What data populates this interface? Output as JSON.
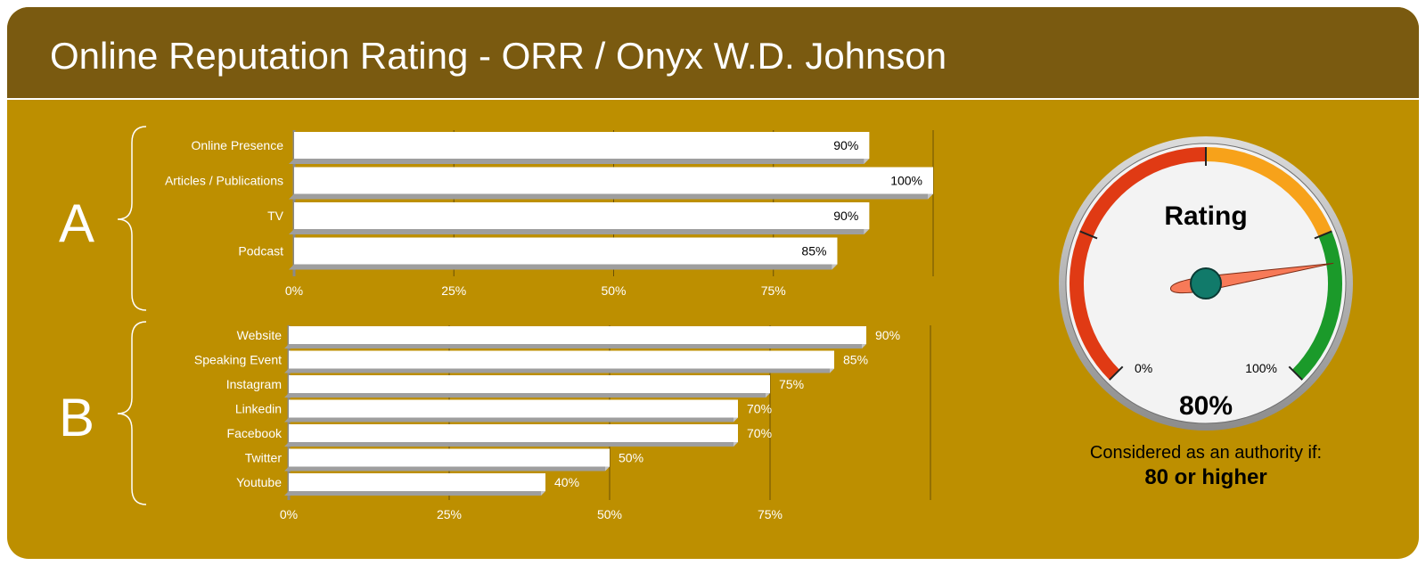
{
  "header": {
    "title": "Online Reputation Rating - ORR / Onyx W.D. Johnson"
  },
  "colors": {
    "background": "#bd8f00",
    "header": "#7a5a10",
    "bar_fill": "#ffffff",
    "gauge_red": "#e03a14",
    "gauge_orange": "#f7a21a",
    "gauge_green": "#1b9a2a",
    "gauge_hub": "#117a6a",
    "needle": "#f77a58"
  },
  "chart_data": [
    {
      "type": "bar",
      "group_label": "A",
      "orientation": "horizontal",
      "categories": [
        "Online Presence",
        "Articles / Publications",
        "TV",
        "Podcast"
      ],
      "values": [
        90,
        100,
        90,
        85
      ],
      "data_labels": [
        "90%",
        "100%",
        "90%",
        "85%"
      ],
      "xlim": [
        0,
        100
      ],
      "ticks": [
        0,
        25,
        50,
        75
      ],
      "tick_labels": [
        "0%",
        "25%",
        "50%",
        "75%"
      ],
      "grid": true
    },
    {
      "type": "bar",
      "group_label": "B",
      "orientation": "horizontal",
      "categories": [
        "Website",
        "Speaking Event",
        "Instagram",
        "Linkedin",
        "Facebook",
        "Twitter",
        "Youtube"
      ],
      "values": [
        90,
        85,
        75,
        70,
        70,
        50,
        40
      ],
      "data_labels": [
        "90%",
        "85%",
        "75%",
        "70%",
        "70%",
        "50%",
        "40%"
      ],
      "xlim": [
        0,
        100
      ],
      "ticks": [
        0,
        25,
        50,
        75
      ],
      "tick_labels": [
        "0%",
        "25%",
        "50%",
        "75%"
      ],
      "grid": true
    },
    {
      "type": "gauge",
      "title": "Rating",
      "value": 80,
      "value_label": "80%",
      "range": [
        0,
        100
      ],
      "min_label": "0%",
      "max_label": "100%",
      "bands": [
        {
          "from": 0,
          "to": 50,
          "color": "#e03a14"
        },
        {
          "from": 50,
          "to": 75,
          "color": "#f7a21a"
        },
        {
          "from": 75,
          "to": 100,
          "color": "#1b9a2a"
        }
      ],
      "major_ticks": [
        0,
        25,
        50,
        75,
        100
      ]
    }
  ],
  "note": {
    "line1": "Considered as an authority if:",
    "line2": "80 or higher"
  }
}
